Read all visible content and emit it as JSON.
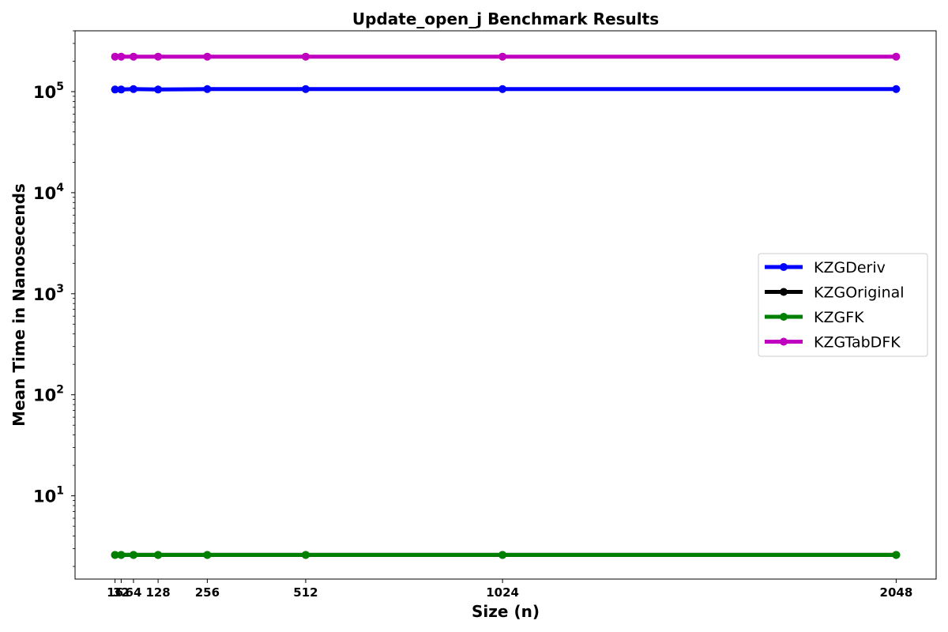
{
  "chart_data": {
    "type": "line",
    "title": "Update_open_j Benchmark Results",
    "xlabel": "Size (n)",
    "ylabel": "Mean Time in Nanosecends",
    "yscale": "log",
    "ylim": [
      1.5,
      400000
    ],
    "xlim": [
      -88,
      2152
    ],
    "grid": false,
    "legend_position": "center-right",
    "x": [
      16,
      32,
      64,
      128,
      256,
      512,
      1024,
      2048
    ],
    "xtick_labels": [
      "16",
      "32",
      "64",
      "128",
      "256",
      "512",
      "1024",
      "2048"
    ],
    "ytick_values": [
      10,
      100,
      1000,
      10000,
      100000
    ],
    "ytick_labels": [
      {
        "base": "10",
        "exp": "1"
      },
      {
        "base": "10",
        "exp": "2"
      },
      {
        "base": "10",
        "exp": "3"
      },
      {
        "base": "10",
        "exp": "4"
      },
      {
        "base": "10",
        "exp": "5"
      }
    ],
    "series": [
      {
        "name": "KZGDeriv",
        "color": "#0000ff",
        "values": [
          105000,
          105000,
          106000,
          105000,
          106000,
          106000,
          106000,
          106000
        ]
      },
      {
        "name": "KZGOriginal",
        "color": "#000000",
        "values": [
          2.6,
          2.6,
          2.6,
          2.6,
          2.6,
          2.6,
          2.6,
          2.6
        ]
      },
      {
        "name": "KZGFK",
        "color": "#008000",
        "values": [
          2.6,
          2.6,
          2.6,
          2.6,
          2.6,
          2.6,
          2.6,
          2.6
        ]
      },
      {
        "name": "KZGTabDFK",
        "color": "#bf00bf",
        "values": [
          222000,
          222000,
          222000,
          222000,
          222000,
          222000,
          222000,
          222000
        ]
      }
    ]
  }
}
